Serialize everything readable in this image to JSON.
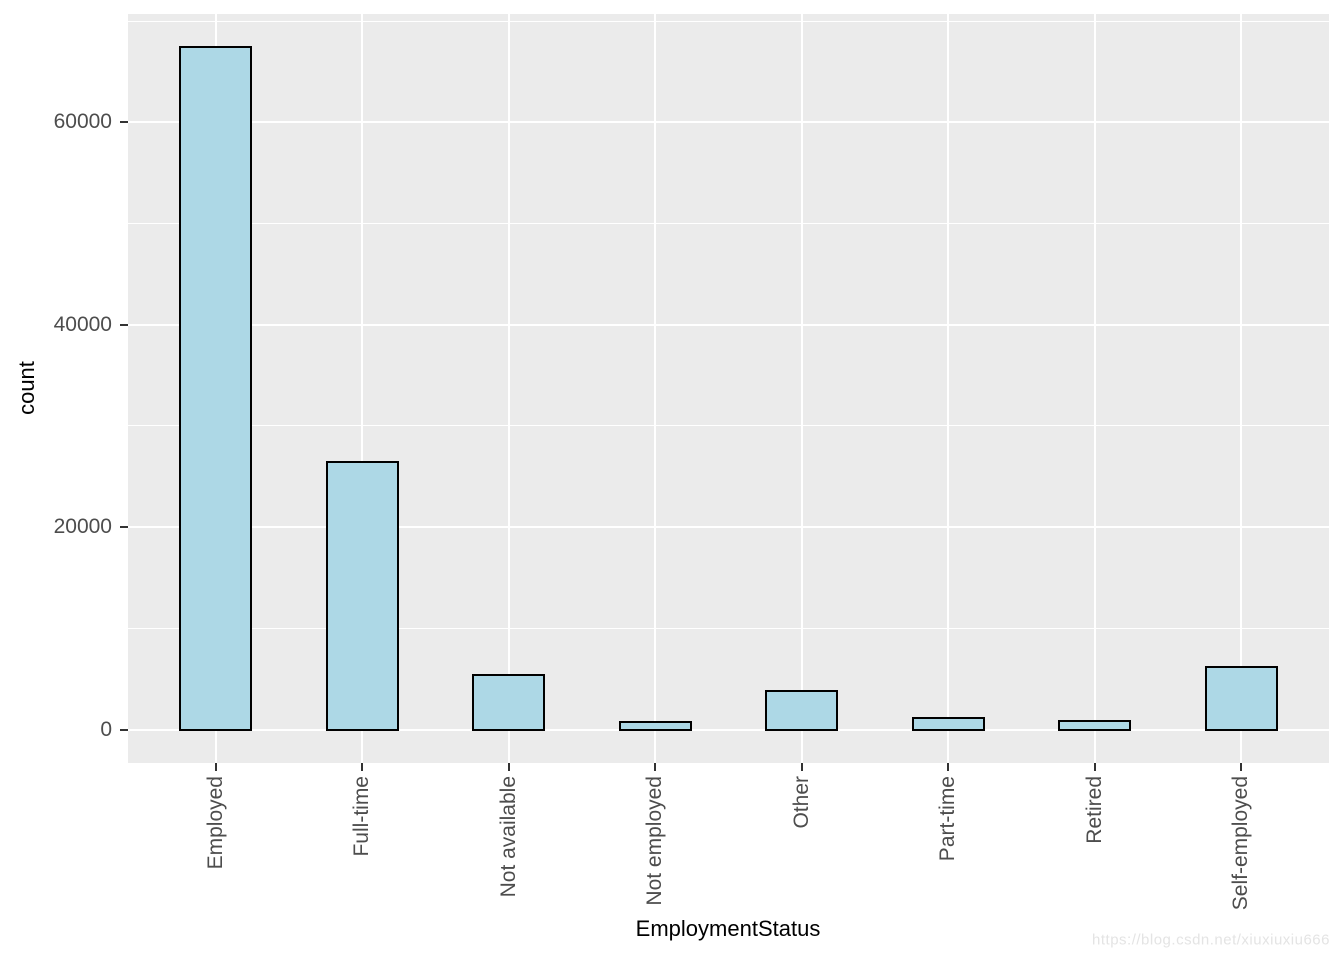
{
  "chart_data": {
    "type": "bar",
    "title": "",
    "xlabel": "EmploymentStatus",
    "ylabel": "count",
    "categories": [
      "Employed",
      "Full-time",
      "Not available",
      "Not employed",
      "Other",
      "Part-time",
      "Retired",
      "Self-employed"
    ],
    "values": [
      67400,
      26400,
      5400,
      800,
      3800,
      1100,
      850,
      6200
    ],
    "ylim": [
      -3300,
      70700
    ],
    "yticks": [
      0,
      20000,
      40000,
      60000
    ],
    "yticks_minor": [
      10000,
      30000,
      50000,
      70000
    ],
    "grid": "on",
    "legend": "none",
    "bar_width_fraction": 0.5,
    "category_expand": 0.6,
    "x_tick_label_angle": 90
  },
  "style": {
    "panel_bg": "#EBEBEB",
    "grid_color": "#FFFFFF",
    "bar_fill": "#ADD8E6",
    "bar_stroke": "#000000",
    "axis_tick_color": "#333333",
    "tick_label_color": "#4D4D4D",
    "axis_title_color": "#000000",
    "watermark_color": "#E4E4E4"
  },
  "watermark": "https://blog.csdn.net/xiuxiuxiu666"
}
